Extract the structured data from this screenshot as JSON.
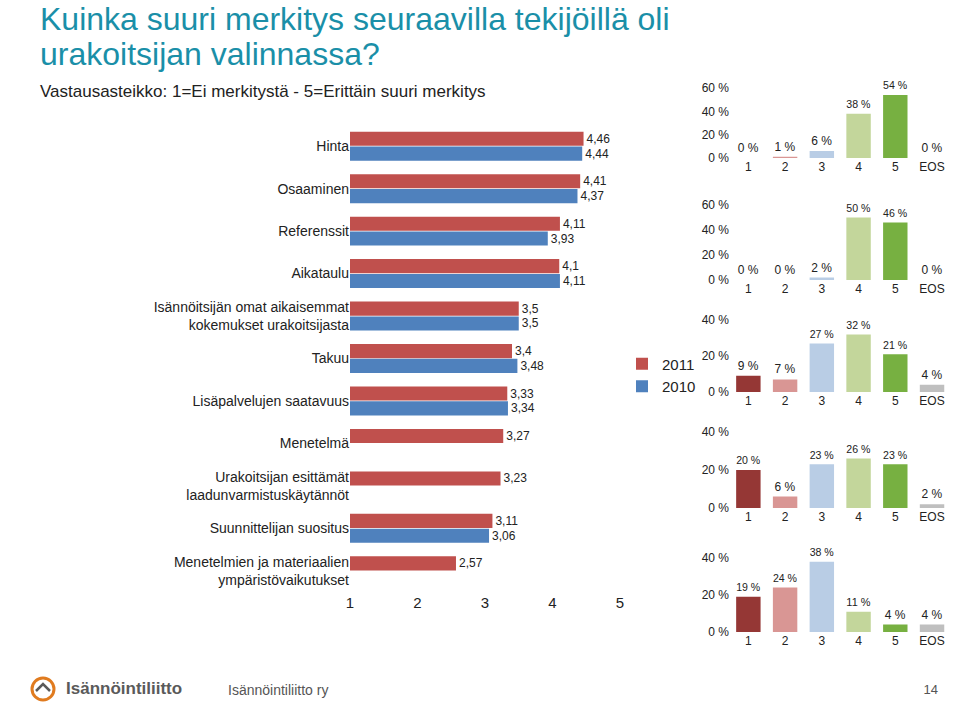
{
  "chart_data": [
    {
      "type": "bar",
      "title": "Kuinka suuri merkitys seuraavilla tekijöillä oli urakoitsijan valinnassa?",
      "subtitle": "Vastausasteikko: 1=Ei merkitystä - 5=Erittäin suuri merkitys",
      "orientation": "horizontal",
      "categories": [
        "Hinta",
        "Osaaminen",
        "Referenssit",
        "Aikataulu",
        "Isännöitsijän omat aikaisemmat kokemukset urakoitsijasta",
        "Takuu",
        "Lisäpalvelujen saatavuus",
        "Menetelmä",
        "Urakoitsijan esittämät laadunvarmistuskäytännöt",
        "Suunnittelijan suositus",
        "Menetelmien ja materiaalien ympäristövaikutukset"
      ],
      "series": [
        {
          "name": "2011",
          "color": "#c0504d",
          "values": [
            4.46,
            4.41,
            4.11,
            4.1,
            3.5,
            3.4,
            3.33,
            3.27,
            3.23,
            3.11,
            2.57
          ],
          "value_labels": [
            "4,46",
            "4,41",
            "4,11",
            "4,1",
            "3,5",
            "3,4",
            "3,33",
            "3,27",
            "3,23",
            "3,11",
            "2,57"
          ]
        },
        {
          "name": "2010",
          "color": "#4f81bd",
          "values": [
            4.44,
            4.37,
            3.93,
            4.11,
            3.5,
            3.48,
            3.34,
            null,
            null,
            3.06,
            null
          ],
          "value_labels": [
            "4,44",
            "4,37",
            "3,93",
            "4,11",
            "3,5",
            "3,48",
            "3,34",
            null,
            null,
            "3,06",
            null
          ]
        }
      ],
      "xlim": [
        1,
        5
      ],
      "xticks": [
        1,
        2,
        3,
        4,
        5
      ],
      "grid": false,
      "legend": "right",
      "data_labels": true
    },
    {
      "type": "bar",
      "categories": [
        "1",
        "2",
        "3",
        "4",
        "5",
        "EOS"
      ],
      "values": [
        0,
        1,
        6,
        38,
        54,
        0
      ],
      "value_labels": [
        "0 %",
        "1 %",
        "6 %",
        "38 %",
        "54 %",
        "0 %"
      ],
      "colors": [
        "#953735",
        "#d99694",
        "#b9cde5",
        "#c3d69b",
        "#77b041",
        "#bfbfbf"
      ],
      "ylim": [
        0,
        60
      ],
      "yticks": [
        {
          "value": 0,
          "label": "0 %"
        },
        {
          "value": 20,
          "label": "20 %"
        },
        {
          "value": 40,
          "label": "40 %"
        },
        {
          "value": 60,
          "label": "60 %"
        }
      ],
      "grid": false,
      "data_labels": true
    },
    {
      "type": "bar",
      "categories": [
        "1",
        "2",
        "3",
        "4",
        "5",
        "EOS"
      ],
      "values": [
        0,
        0,
        2,
        50,
        46,
        0
      ],
      "value_labels": [
        "0 %",
        "0 %",
        "2 %",
        "50 %",
        "46 %",
        "0 %"
      ],
      "colors": [
        "#953735",
        "#d99694",
        "#b9cde5",
        "#c3d69b",
        "#77b041",
        "#bfbfbf"
      ],
      "ylim": [
        0,
        60
      ],
      "yticks": [
        {
          "value": 0,
          "label": "0 %"
        },
        {
          "value": 20,
          "label": "20 %"
        },
        {
          "value": 40,
          "label": "40 %"
        },
        {
          "value": 60,
          "label": "60 %"
        }
      ],
      "grid": false,
      "data_labels": true
    },
    {
      "type": "bar",
      "categories": [
        "1",
        "2",
        "3",
        "4",
        "5",
        "EOS"
      ],
      "values": [
        9,
        7,
        27,
        32,
        21,
        4
      ],
      "value_labels": [
        "9 %",
        "7 %",
        "27 %",
        "32 %",
        "21 %",
        "4 %"
      ],
      "colors": [
        "#953735",
        "#d99694",
        "#b9cde5",
        "#c3d69b",
        "#77b041",
        "#bfbfbf"
      ],
      "ylim": [
        0,
        40
      ],
      "yticks": [
        {
          "value": 0,
          "label": "0 %"
        },
        {
          "value": 20,
          "label": "20 %"
        },
        {
          "value": 40,
          "label": "40 %"
        }
      ],
      "grid": false,
      "data_labels": true
    },
    {
      "type": "bar",
      "categories": [
        "1",
        "2",
        "3",
        "4",
        "5",
        "EOS"
      ],
      "values": [
        20,
        6,
        23,
        26,
        23,
        2
      ],
      "value_labels": [
        "20 %",
        "6 %",
        "23 %",
        "26 %",
        "23 %",
        "2 %"
      ],
      "colors": [
        "#953735",
        "#d99694",
        "#b9cde5",
        "#c3d69b",
        "#77b041",
        "#bfbfbf"
      ],
      "ylim": [
        0,
        40
      ],
      "yticks": [
        {
          "value": 0,
          "label": "0 %"
        },
        {
          "value": 20,
          "label": "20 %"
        },
        {
          "value": 40,
          "label": "40 %"
        }
      ],
      "grid": false,
      "data_labels": true
    },
    {
      "type": "bar",
      "categories": [
        "1",
        "2",
        "3",
        "4",
        "5",
        "EOS"
      ],
      "values": [
        19,
        24,
        38,
        11,
        4,
        4
      ],
      "value_labels": [
        "19 %",
        "24 %",
        "38 %",
        "11 %",
        "4 %",
        "4 %"
      ],
      "colors": [
        "#953735",
        "#d99694",
        "#b9cde5",
        "#c3d69b",
        "#77b041",
        "#bfbfbf"
      ],
      "ylim": [
        0,
        40
      ],
      "yticks": [
        {
          "value": 0,
          "label": "0 %"
        },
        {
          "value": 20,
          "label": "20 %"
        },
        {
          "value": 40,
          "label": "40 %"
        }
      ],
      "grid": false,
      "data_labels": true
    }
  ],
  "footer": {
    "logo": "Isännöintiliitto",
    "organization": "Isännöintiliitto ry",
    "page": "14"
  }
}
